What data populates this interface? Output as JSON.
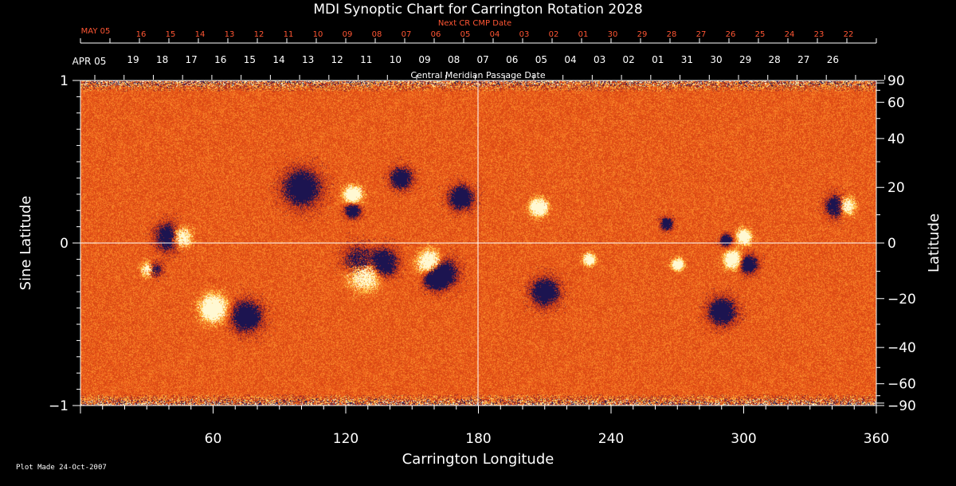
{
  "chart_data": {
    "type": "heatmap",
    "title": "MDI Synoptic Chart for Carrington Rotation 2028",
    "xlabel": "Carrington Longitude",
    "ylabel_left": "Sine Latitude",
    "ylabel_right": "Latitude",
    "xlim": [
      0,
      360
    ],
    "ylim": [
      -1,
      1
    ],
    "x_ticks": [
      60,
      120,
      180,
      240,
      300,
      360
    ],
    "y_ticks_left": [
      "1",
      "0",
      "−1"
    ],
    "y_ticks_left_values": [
      1,
      0,
      -1
    ],
    "y_ticks_right": [
      "90",
      "60",
      "40",
      "20",
      "0",
      "−20",
      "−40",
      "−60",
      "−90"
    ],
    "y_ticks_right_values": [
      90,
      60,
      40,
      20,
      0,
      -20,
      -40,
      -60,
      -90
    ],
    "top_axis_next": {
      "label": "Next CR CMP Date",
      "start_label": "MAY 05",
      "dates": [
        "16",
        "15",
        "14",
        "13",
        "12",
        "11",
        "10",
        "09",
        "08",
        "07",
        "06",
        "05",
        "04",
        "03",
        "02",
        "01",
        "30",
        "29",
        "28",
        "27",
        "26",
        "25",
        "24",
        "23",
        "22"
      ]
    },
    "top_axis_cmp": {
      "label": "Central Meridian Passage Date",
      "start_label": "APR 05",
      "dates": [
        "19",
        "18",
        "17",
        "16",
        "15",
        "14",
        "13",
        "12",
        "11",
        "10",
        "09",
        "08",
        "07",
        "06",
        "05",
        "04",
        "03",
        "02",
        "01",
        "31",
        "30",
        "29",
        "28",
        "27",
        "26"
      ]
    },
    "footer": "Plot Made 24-Oct-2007",
    "colors": {
      "background": "#000000",
      "base_field": "#e8501a",
      "negative": "#1c1450",
      "positive": "#fff8d0",
      "next_axis": "#ff5533"
    },
    "features": [
      {
        "lon": 40,
        "sinlat": 0.04,
        "polarity": "neg",
        "r": 0.9
      },
      {
        "lon": 45,
        "sinlat": 0.04,
        "polarity": "pos",
        "r": 0.7
      },
      {
        "lon": 33,
        "sinlat": -0.16,
        "polarity": "neg",
        "r": 0.5
      },
      {
        "lon": 31,
        "sinlat": -0.16,
        "polarity": "pos",
        "r": 0.5
      },
      {
        "lon": 126,
        "sinlat": -0.12,
        "polarity": "neg",
        "r": 1.0
      },
      {
        "lon": 128,
        "sinlat": -0.18,
        "polarity": "pos",
        "r": 1.1
      },
      {
        "lon": 137,
        "sinlat": -0.12,
        "polarity": "neg",
        "r": 0.9
      },
      {
        "lon": 123,
        "sinlat": 0.3,
        "polarity": "pos",
        "r": 0.6
      },
      {
        "lon": 123,
        "sinlat": 0.2,
        "polarity": "neg",
        "r": 0.5
      },
      {
        "lon": 158,
        "sinlat": -0.12,
        "polarity": "pos",
        "r": 0.8
      },
      {
        "lon": 164,
        "sinlat": -0.18,
        "polarity": "neg",
        "r": 0.9
      },
      {
        "lon": 160,
        "sinlat": -0.22,
        "polarity": "neg",
        "r": 0.7
      },
      {
        "lon": 207,
        "sinlat": 0.22,
        "polarity": "pos",
        "r": 0.6
      },
      {
        "lon": 342,
        "sinlat": 0.23,
        "polarity": "neg",
        "r": 0.7
      },
      {
        "lon": 346,
        "sinlat": 0.23,
        "polarity": "pos",
        "r": 0.6
      },
      {
        "lon": 295,
        "sinlat": -0.1,
        "polarity": "pos",
        "r": 0.6
      },
      {
        "lon": 302,
        "sinlat": -0.13,
        "polarity": "neg",
        "r": 0.6
      },
      {
        "lon": 300,
        "sinlat": 0.04,
        "polarity": "pos",
        "r": 0.5
      },
      {
        "lon": 292,
        "sinlat": 0.02,
        "polarity": "neg",
        "r": 0.4
      },
      {
        "lon": 270,
        "sinlat": -0.13,
        "polarity": "pos",
        "r": 0.4
      },
      {
        "lon": 265,
        "sinlat": 0.12,
        "polarity": "neg",
        "r": 0.4
      },
      {
        "lon": 230,
        "sinlat": -0.1,
        "polarity": "pos",
        "r": 0.4
      },
      {
        "lon": 100,
        "sinlat": 0.34,
        "polarity": "neg",
        "r": 1.2
      },
      {
        "lon": 172,
        "sinlat": 0.28,
        "polarity": "neg",
        "r": 0.8
      },
      {
        "lon": 145,
        "sinlat": 0.4,
        "polarity": "neg",
        "r": 0.7
      },
      {
        "lon": 75,
        "sinlat": -0.45,
        "polarity": "neg",
        "r": 1.0
      },
      {
        "lon": 60,
        "sinlat": -0.4,
        "polarity": "pos",
        "r": 0.9
      },
      {
        "lon": 210,
        "sinlat": -0.3,
        "polarity": "neg",
        "r": 0.9
      },
      {
        "lon": 290,
        "sinlat": -0.42,
        "polarity": "neg",
        "r": 0.9
      }
    ]
  }
}
